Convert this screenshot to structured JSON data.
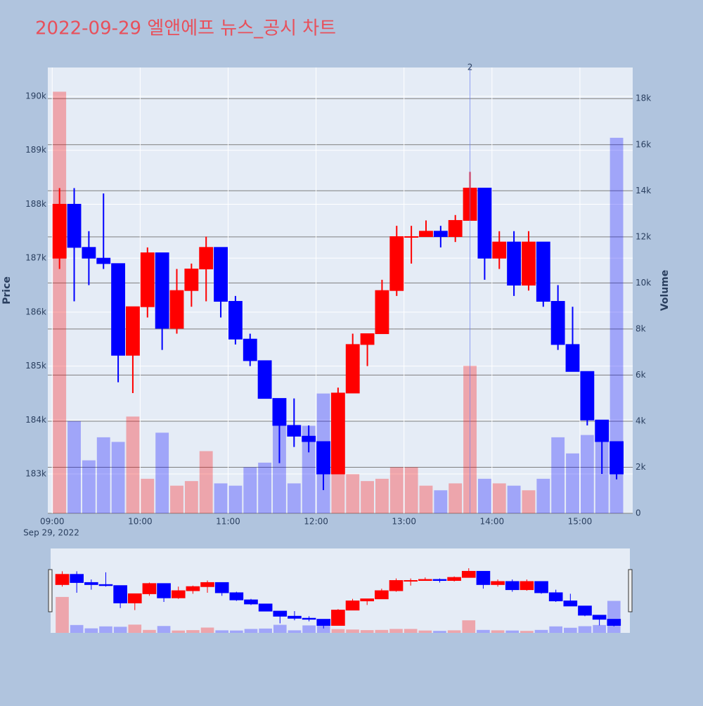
{
  "chart_data": {
    "type": "candlestick",
    "title": "2022-09-29 엘앤에프 뉴스_공시 차트",
    "y_axis_label": "Price",
    "y2_axis_label": "Volume",
    "x_date_label": "Sep 29, 2022",
    "x": [
      "09:00",
      "09:10",
      "09:20",
      "09:30",
      "09:40",
      "09:50",
      "10:00",
      "10:10",
      "10:20",
      "10:30",
      "10:40",
      "10:50",
      "11:00",
      "11:10",
      "11:20",
      "11:30",
      "11:40",
      "11:50",
      "12:00",
      "12:10",
      "12:20",
      "12:30",
      "12:40",
      "12:50",
      "13:00",
      "13:10",
      "13:20",
      "13:30",
      "13:40",
      "13:50",
      "14:00",
      "14:10",
      "14:20",
      "14:30",
      "14:40",
      "14:50",
      "15:00",
      "15:10",
      "15:20"
    ],
    "open": [
      187000,
      188000,
      187200,
      187000,
      186900,
      185200,
      186100,
      187100,
      185700,
      186400,
      186800,
      187200,
      186200,
      185500,
      185100,
      184400,
      183900,
      183700,
      183600,
      183000,
      184500,
      185400,
      185600,
      186400,
      187400,
      187400,
      187500,
      187400,
      187700,
      188300,
      187000,
      187300,
      186500,
      187300,
      186200,
      185400,
      184900,
      184000,
      183600
    ],
    "high": [
      188300,
      188300,
      187500,
      188200,
      186900,
      186100,
      187200,
      187100,
      186800,
      186900,
      187400,
      187200,
      186300,
      185600,
      185100,
      184400,
      184400,
      183900,
      183600,
      184600,
      185600,
      185600,
      186600,
      187600,
      187600,
      187700,
      187600,
      187800,
      188600,
      188300,
      187500,
      187500,
      187500,
      187300,
      186500,
      186100,
      184900,
      184000,
      183600
    ],
    "low": [
      186800,
      186200,
      186500,
      186800,
      184700,
      184500,
      185900,
      185300,
      185600,
      186100,
      186200,
      185900,
      185400,
      185000,
      184400,
      183200,
      183500,
      183400,
      182700,
      183000,
      184500,
      185000,
      185600,
      186300,
      186900,
      187400,
      187200,
      187300,
      187700,
      186600,
      186800,
      186300,
      186400,
      186100,
      185300,
      184900,
      183900,
      183000,
      182900
    ],
    "close": [
      188000,
      187200,
      187000,
      186900,
      185200,
      186100,
      187100,
      185700,
      186400,
      186800,
      187200,
      186200,
      185500,
      185100,
      184400,
      183900,
      183700,
      183600,
      183000,
      184500,
      185400,
      185600,
      186400,
      187400,
      187400,
      187500,
      187400,
      187700,
      188300,
      187000,
      187300,
      186500,
      187300,
      186200,
      185400,
      184900,
      184000,
      183600,
      183000
    ],
    "volume": [
      18300,
      4000,
      2300,
      3300,
      3100,
      4200,
      1500,
      3500,
      1200,
      1400,
      2700,
      1300,
      1200,
      2000,
      2200,
      4100,
      1300,
      3800,
      5200,
      1900,
      1700,
      1400,
      1500,
      2000,
      2000,
      1200,
      1000,
      1300,
      6400,
      1500,
      1300,
      1200,
      1000,
      1500,
      3300,
      2600,
      3400,
      4000,
      16300
    ],
    "up_color": "#ff0000",
    "down_color": "#0000ff",
    "xlim": [
      "08:57",
      "15:36"
    ],
    "xticks": [
      "09:00",
      "10:00",
      "11:00",
      "12:00",
      "13:00",
      "14:00",
      "15:00"
    ],
    "ylim": [
      182270,
      190535
    ],
    "yticks": [
      {
        "value": 183000,
        "label": "183k"
      },
      {
        "value": 184000,
        "label": "184k"
      },
      {
        "value": 185000,
        "label": "185k"
      },
      {
        "value": 186000,
        "label": "186k"
      },
      {
        "value": 187000,
        "label": "187k"
      },
      {
        "value": 188000,
        "label": "188k"
      },
      {
        "value": 189000,
        "label": "189k"
      },
      {
        "value": 190000,
        "label": "190k"
      }
    ],
    "y2lim": [
      0,
      19350
    ],
    "y2ticks": [
      0,
      {
        "value": 2000,
        "label": "2k"
      },
      {
        "value": 4000,
        "label": "4k"
      },
      {
        "value": 6000,
        "label": "6k"
      },
      {
        "value": 8000,
        "label": "8k"
      },
      {
        "value": 10000,
        "label": "10k"
      },
      {
        "value": 12000,
        "label": "12k"
      },
      {
        "value": 14000,
        "label": "14k"
      },
      {
        "value": 16000,
        "label": "16k"
      },
      {
        "value": 18000,
        "label": "18k"
      }
    ],
    "annotations": [
      {
        "x": "13:45",
        "text": "2"
      }
    ],
    "grid": true
  }
}
